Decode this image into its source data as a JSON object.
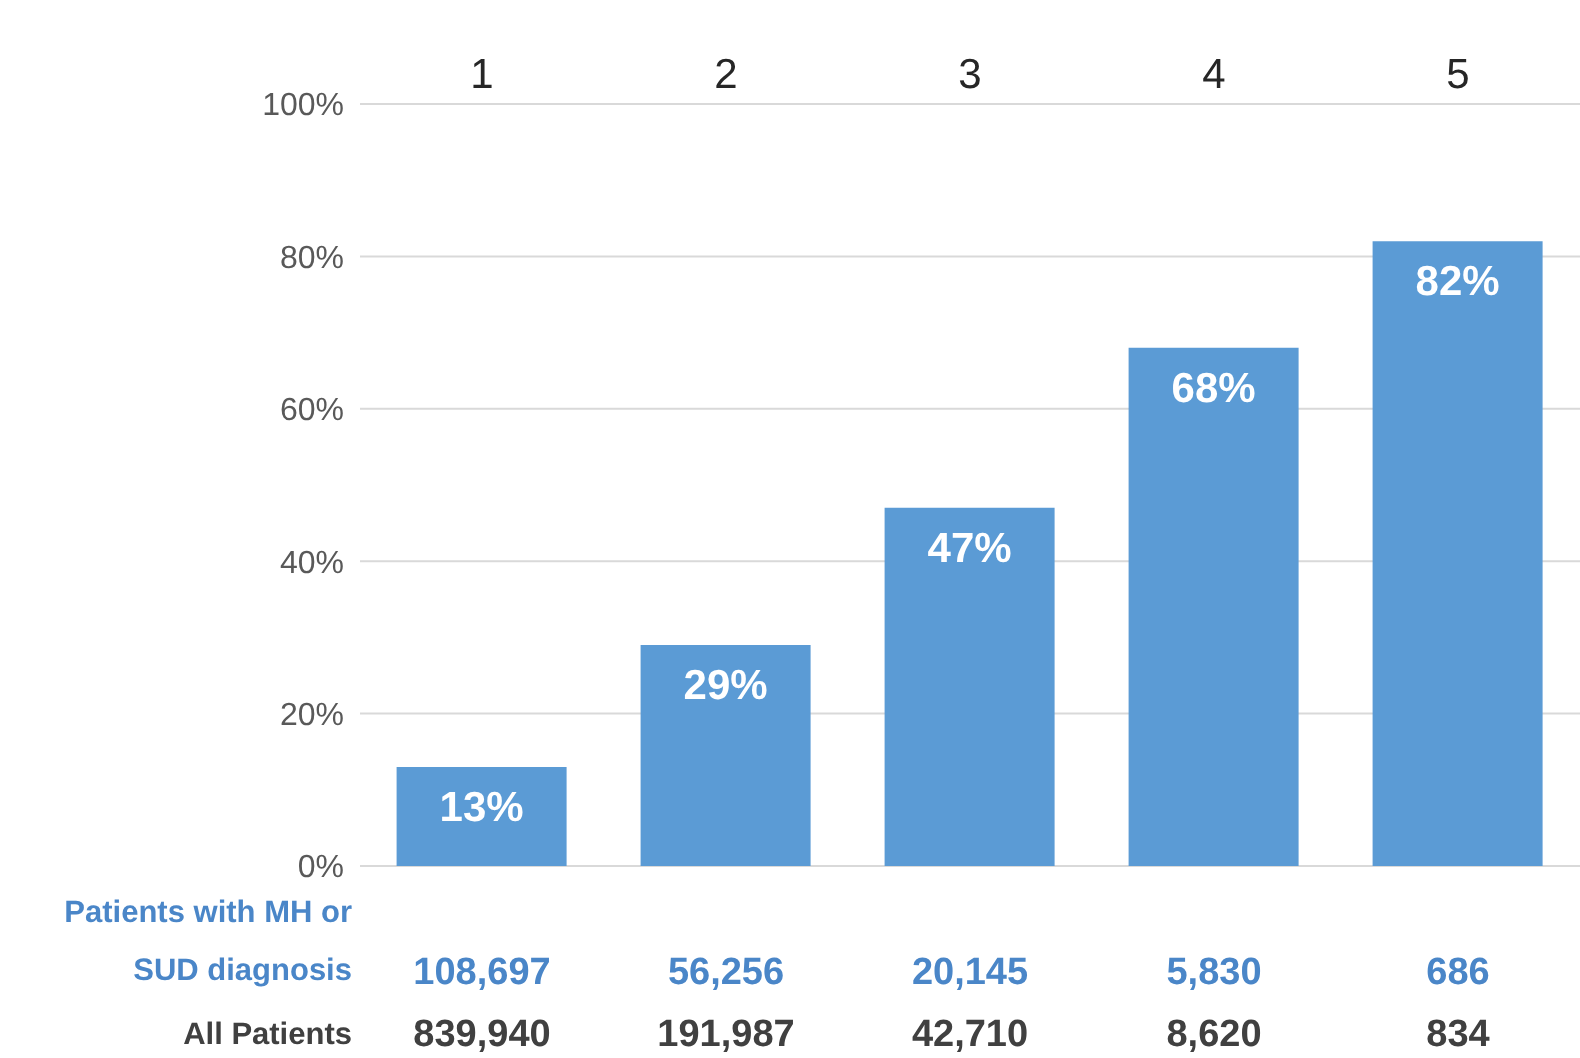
{
  "chart_data": {
    "type": "bar",
    "categories": [
      "1",
      "2",
      "3",
      "4",
      "5"
    ],
    "values": [
      13,
      29,
      47,
      68,
      82
    ],
    "value_labels": [
      "13%",
      "29%",
      "47%",
      "68%",
      "82%"
    ],
    "color": "#5b9bd5",
    "ylim": [
      0,
      100
    ],
    "yticks": [
      {
        "value": 0,
        "label": "0%"
      },
      {
        "value": 20,
        "label": "20%"
      },
      {
        "value": 40,
        "label": "40%"
      },
      {
        "value": 60,
        "label": "60%"
      },
      {
        "value": 80,
        "label": "80%"
      },
      {
        "value": 100,
        "label": "100%"
      }
    ],
    "grid": "y",
    "annotations": [
      "Patients with MH or SUD diagnosis",
      "108,697",
      "56,256",
      "20,145",
      "5,830",
      "686",
      "All Patients",
      "839,940",
      "191,987",
      "42,710",
      "8,620",
      "834"
    ]
  }
}
